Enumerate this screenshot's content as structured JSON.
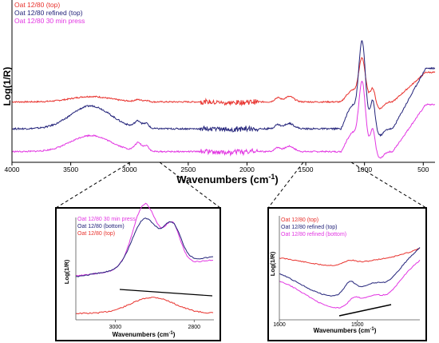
{
  "chart_data": [
    {
      "type": "line",
      "title": "",
      "xlabel": "Wavenumbers (cm",
      "xlabel_sup": "-1",
      "xlabel_close": ")",
      "ylabel": "Log(1/R)",
      "xlim": [
        4000,
        400
      ],
      "x_reversed": true,
      "xticks": [
        "4000",
        "3500",
        "3000",
        "2500",
        "2000",
        "1500",
        "1000",
        "500"
      ],
      "xtick_values": [
        4000,
        3500,
        3000,
        2500,
        2000,
        1500,
        1000,
        500
      ],
      "yticks_shown": false,
      "legend_position": "top-left",
      "series": [
        {
          "name": "Oat 12/80 (top)",
          "color": "#e8312c",
          "baseline": 0.42
        },
        {
          "name": "Oat 12/80 refined (top)",
          "color": "#23237a",
          "baseline": 0.22
        },
        {
          "name": "Oat 12/80 30 min press",
          "color": "#e236e2",
          "baseline": 0.05
        }
      ]
    },
    {
      "type": "line",
      "title": "",
      "xlabel": "Wavenumbers (cm",
      "xlabel_sup": "-1",
      "xlabel_close": ")",
      "ylabel": "Log(1/R)",
      "xlim": [
        3100,
        2750
      ],
      "x_reversed": true,
      "xticks": [
        "3000",
        "2800"
      ],
      "xtick_values": [
        3000,
        2800
      ],
      "yticks_shown": false,
      "legend_position": "top-left",
      "series": [
        {
          "name": "Oat 12/80 30 min press",
          "color": "#e236e2"
        },
        {
          "name": "Oat 12/80 (bottom)",
          "color": "#23237a"
        },
        {
          "name": "Oat 12/80 (top)",
          "color": "#e8312c"
        }
      ],
      "baseline_annotation": true
    },
    {
      "type": "line",
      "title": "",
      "xlabel": "Wavenumbers (cm",
      "xlabel_sup": "-1",
      "xlabel_close": ")",
      "ylabel": "Log(1/R)",
      "xlim": [
        1600,
        1420
      ],
      "x_reversed": true,
      "xticks": [
        "1600",
        "1500"
      ],
      "xtick_values": [
        1600,
        1500
      ],
      "yticks_shown": false,
      "legend_position": "top-left",
      "series": [
        {
          "name": "Oat 12/80 (top)",
          "color": "#e8312c"
        },
        {
          "name": "Oat 12/80 refined (top)",
          "color": "#23237a"
        },
        {
          "name": "Oat 12/80 refined (bottom)",
          "color": "#e236e2"
        }
      ],
      "baseline_annotation": true
    }
  ]
}
